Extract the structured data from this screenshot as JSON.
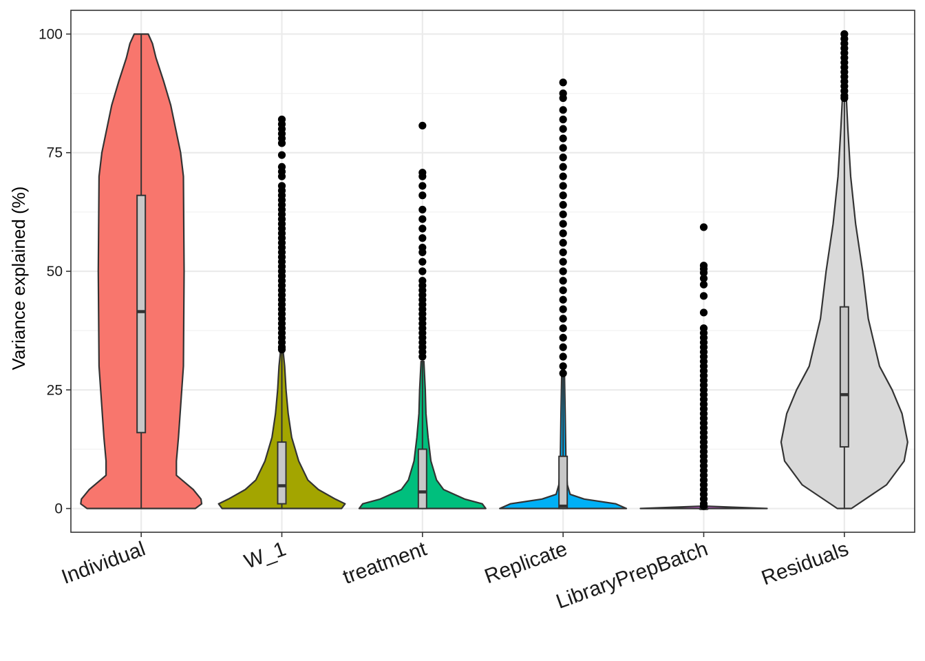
{
  "chart_data": {
    "type": "violin",
    "title": "",
    "xlabel": "",
    "ylabel": "Variance explained (%)",
    "ylim": [
      -5,
      105
    ],
    "yticks": [
      0,
      25,
      50,
      75,
      100
    ],
    "ytick_labels": [
      "0",
      "25",
      "50",
      "75",
      "100"
    ],
    "grid": true,
    "legend": "none",
    "categories": [
      "Individual",
      "W_1",
      "treatment",
      "Replicate",
      "LibraryPrepBatch",
      "Residuals"
    ],
    "series": [
      {
        "category": "Individual",
        "color": "#F8766D",
        "box": {
          "min": 0,
          "q1": 16,
          "median": 41.5,
          "q3": 66,
          "max": 100
        },
        "density_max_halfwidth": 0.9,
        "density": [
          [
            0,
            0.77
          ],
          [
            1,
            0.86
          ],
          [
            2,
            0.85
          ],
          [
            4,
            0.74
          ],
          [
            7,
            0.5
          ],
          [
            10,
            0.5
          ],
          [
            15,
            0.53
          ],
          [
            30,
            0.6
          ],
          [
            50,
            0.61
          ],
          [
            70,
            0.6
          ],
          [
            75,
            0.56
          ],
          [
            85,
            0.42
          ],
          [
            90,
            0.32
          ],
          [
            95,
            0.21
          ],
          [
            98,
            0.16
          ],
          [
            100,
            0.1
          ]
        ],
        "outliers": []
      },
      {
        "category": "W_1",
        "color": "#A3A500",
        "box": {
          "min": 0,
          "q1": 1,
          "median": 4.8,
          "q3": 14,
          "max": 33
        },
        "density_max_halfwidth": 0.9,
        "density": [
          [
            0,
            0.85
          ],
          [
            1,
            0.9
          ],
          [
            2,
            0.76
          ],
          [
            4,
            0.52
          ],
          [
            6,
            0.37
          ],
          [
            10,
            0.24
          ],
          [
            15,
            0.14
          ],
          [
            20,
            0.09
          ],
          [
            25,
            0.06
          ],
          [
            30,
            0.04
          ],
          [
            33,
            0.02
          ]
        ],
        "outliers": [
          33.5,
          34,
          35,
          36,
          37,
          38,
          39,
          40,
          41,
          42,
          43,
          44,
          45,
          46,
          47,
          48,
          49,
          50,
          51,
          52,
          53,
          54,
          55,
          56,
          57,
          58,
          59,
          60,
          61,
          62,
          63,
          64,
          65,
          66,
          67,
          68,
          70,
          71,
          72,
          74.5,
          77,
          78,
          79,
          80,
          81,
          82
        ]
      },
      {
        "category": "treatment",
        "color": "#00BF7D",
        "box": {
          "min": 0,
          "q1": 0,
          "median": 3.5,
          "q3": 12.5,
          "max": 31
        },
        "density_max_halfwidth": 0.9,
        "density": [
          [
            0,
            0.9
          ],
          [
            1,
            0.85
          ],
          [
            2,
            0.6
          ],
          [
            4,
            0.3
          ],
          [
            6,
            0.2
          ],
          [
            10,
            0.12
          ],
          [
            15,
            0.08
          ],
          [
            20,
            0.05
          ],
          [
            25,
            0.04
          ],
          [
            31,
            0.02
          ]
        ],
        "outliers": [
          32,
          33,
          34,
          35,
          36,
          37,
          38,
          39,
          40,
          41,
          42,
          43,
          44,
          45,
          46,
          47,
          48,
          50,
          52,
          54,
          55,
          57,
          59,
          61,
          63,
          66,
          68,
          70,
          70.8,
          80.7
        ]
      },
      {
        "category": "Replicate",
        "color": "#00B0F6",
        "box": {
          "min": 0,
          "q1": 0,
          "median": 0.5,
          "q3": 11,
          "max": 28
        },
        "density_max_halfwidth": 0.9,
        "density": [
          [
            0,
            0.9
          ],
          [
            1,
            0.75
          ],
          [
            2,
            0.3
          ],
          [
            3,
            0.1
          ],
          [
            5,
            0.06
          ],
          [
            10,
            0.04
          ],
          [
            20,
            0.03
          ],
          [
            28,
            0.02
          ]
        ],
        "outliers": [
          28.5,
          30,
          32,
          34,
          36,
          38,
          40,
          42,
          44,
          46,
          48,
          50,
          52,
          54,
          56,
          58,
          60,
          62,
          64,
          66,
          68,
          70,
          72,
          74,
          76,
          78,
          80,
          82,
          84,
          86.5,
          87.5,
          89.8
        ]
      },
      {
        "category": "LibraryPrepBatch",
        "color": "#E76BF3",
        "box": {
          "min": 0,
          "q1": 0,
          "median": 0,
          "q3": 0,
          "max": 0
        },
        "density_max_halfwidth": 0.9,
        "density": [
          [
            0,
            0.9
          ],
          [
            0.5,
            0.02
          ]
        ],
        "outliers": [
          0.5,
          1,
          2,
          3,
          4,
          5,
          6,
          7,
          8,
          9,
          10,
          11,
          12,
          13,
          14,
          15,
          16,
          17,
          18,
          19,
          20,
          21,
          22,
          23,
          24,
          25,
          26,
          27,
          28,
          29,
          30,
          31,
          32,
          33,
          34,
          35,
          36,
          37,
          38,
          41.3,
          44.8,
          47.2,
          48.5,
          49.7,
          50.5,
          51.2,
          59.3
        ]
      },
      {
        "category": "Residuals",
        "color": "#D9D9D9",
        "box": {
          "min": 0,
          "q1": 13,
          "median": 24,
          "q3": 42.5,
          "max": 86
        },
        "density_max_halfwidth": 0.9,
        "density": [
          [
            0,
            0.1
          ],
          [
            5,
            0.6
          ],
          [
            10,
            0.85
          ],
          [
            14,
            0.9
          ],
          [
            20,
            0.82
          ],
          [
            25,
            0.68
          ],
          [
            30,
            0.5
          ],
          [
            40,
            0.34
          ],
          [
            50,
            0.26
          ],
          [
            60,
            0.16
          ],
          [
            70,
            0.09
          ],
          [
            80,
            0.05
          ],
          [
            86,
            0.03
          ]
        ],
        "outliers": [
          86.5,
          87,
          88,
          89,
          90,
          91,
          92,
          93,
          94,
          95,
          96,
          97,
          98,
          99,
          100
        ]
      }
    ]
  }
}
